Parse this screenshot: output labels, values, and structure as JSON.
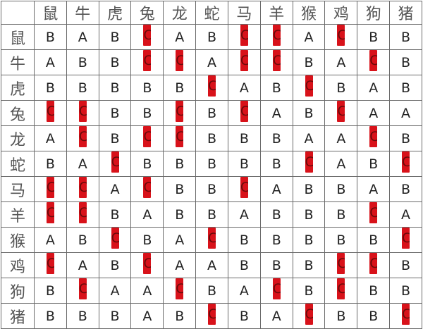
{
  "headers": [
    "鼠",
    "牛",
    "虎",
    "兔",
    "龙",
    "蛇",
    "马",
    "羊",
    "猴",
    "鸡",
    "狗",
    "猪"
  ],
  "highlight_color": "#d8121a",
  "rows": [
    {
      "label": "鼠",
      "cells": [
        "B",
        "A",
        "B",
        "C",
        "A",
        "B",
        "C",
        "C",
        "A",
        "C",
        "B",
        "B"
      ]
    },
    {
      "label": "牛",
      "cells": [
        "A",
        "B",
        "B",
        "C",
        "C",
        "A",
        "C",
        "C",
        "B",
        "A",
        "C",
        "B"
      ]
    },
    {
      "label": "虎",
      "cells": [
        "B",
        "B",
        "B",
        "B",
        "B",
        "C",
        "A",
        "B",
        "C",
        "B",
        "A",
        "B"
      ]
    },
    {
      "label": "兔",
      "cells": [
        "C",
        "C",
        "B",
        "B",
        "C",
        "B",
        "C",
        "A",
        "B",
        "C",
        "A",
        "A"
      ]
    },
    {
      "label": "龙",
      "cells": [
        "A",
        "C",
        "B",
        "C",
        "C",
        "B",
        "B",
        "B",
        "A",
        "A",
        "C",
        "B"
      ]
    },
    {
      "label": "蛇",
      "cells": [
        "B",
        "A",
        "C",
        "B",
        "B",
        "B",
        "B",
        "B",
        "C",
        "A",
        "B",
        "C"
      ]
    },
    {
      "label": "马",
      "cells": [
        "C",
        "C",
        "A",
        "C",
        "B",
        "B",
        "C",
        "A",
        "B",
        "B",
        "A",
        "B"
      ]
    },
    {
      "label": "羊",
      "cells": [
        "C",
        "C",
        "B",
        "A",
        "B",
        "B",
        "A",
        "B",
        "B",
        "B",
        "C",
        "A"
      ]
    },
    {
      "label": "猴",
      "cells": [
        "A",
        "B",
        "C",
        "B",
        "A",
        "C",
        "B",
        "B",
        "B",
        "B",
        "B",
        "C"
      ]
    },
    {
      "label": "鸡",
      "cells": [
        "C",
        "A",
        "B",
        "C",
        "A",
        "A",
        "B",
        "B",
        "B",
        "C",
        "C",
        "B"
      ]
    },
    {
      "label": "狗",
      "cells": [
        "B",
        "C",
        "A",
        "A",
        "C",
        "B",
        "A",
        "C",
        "B",
        "C",
        "B",
        "B"
      ]
    },
    {
      "label": "猪",
      "cells": [
        "B",
        "B",
        "B",
        "A",
        "B",
        "C",
        "B",
        "A",
        "C",
        "B",
        "B",
        "C"
      ]
    }
  ]
}
